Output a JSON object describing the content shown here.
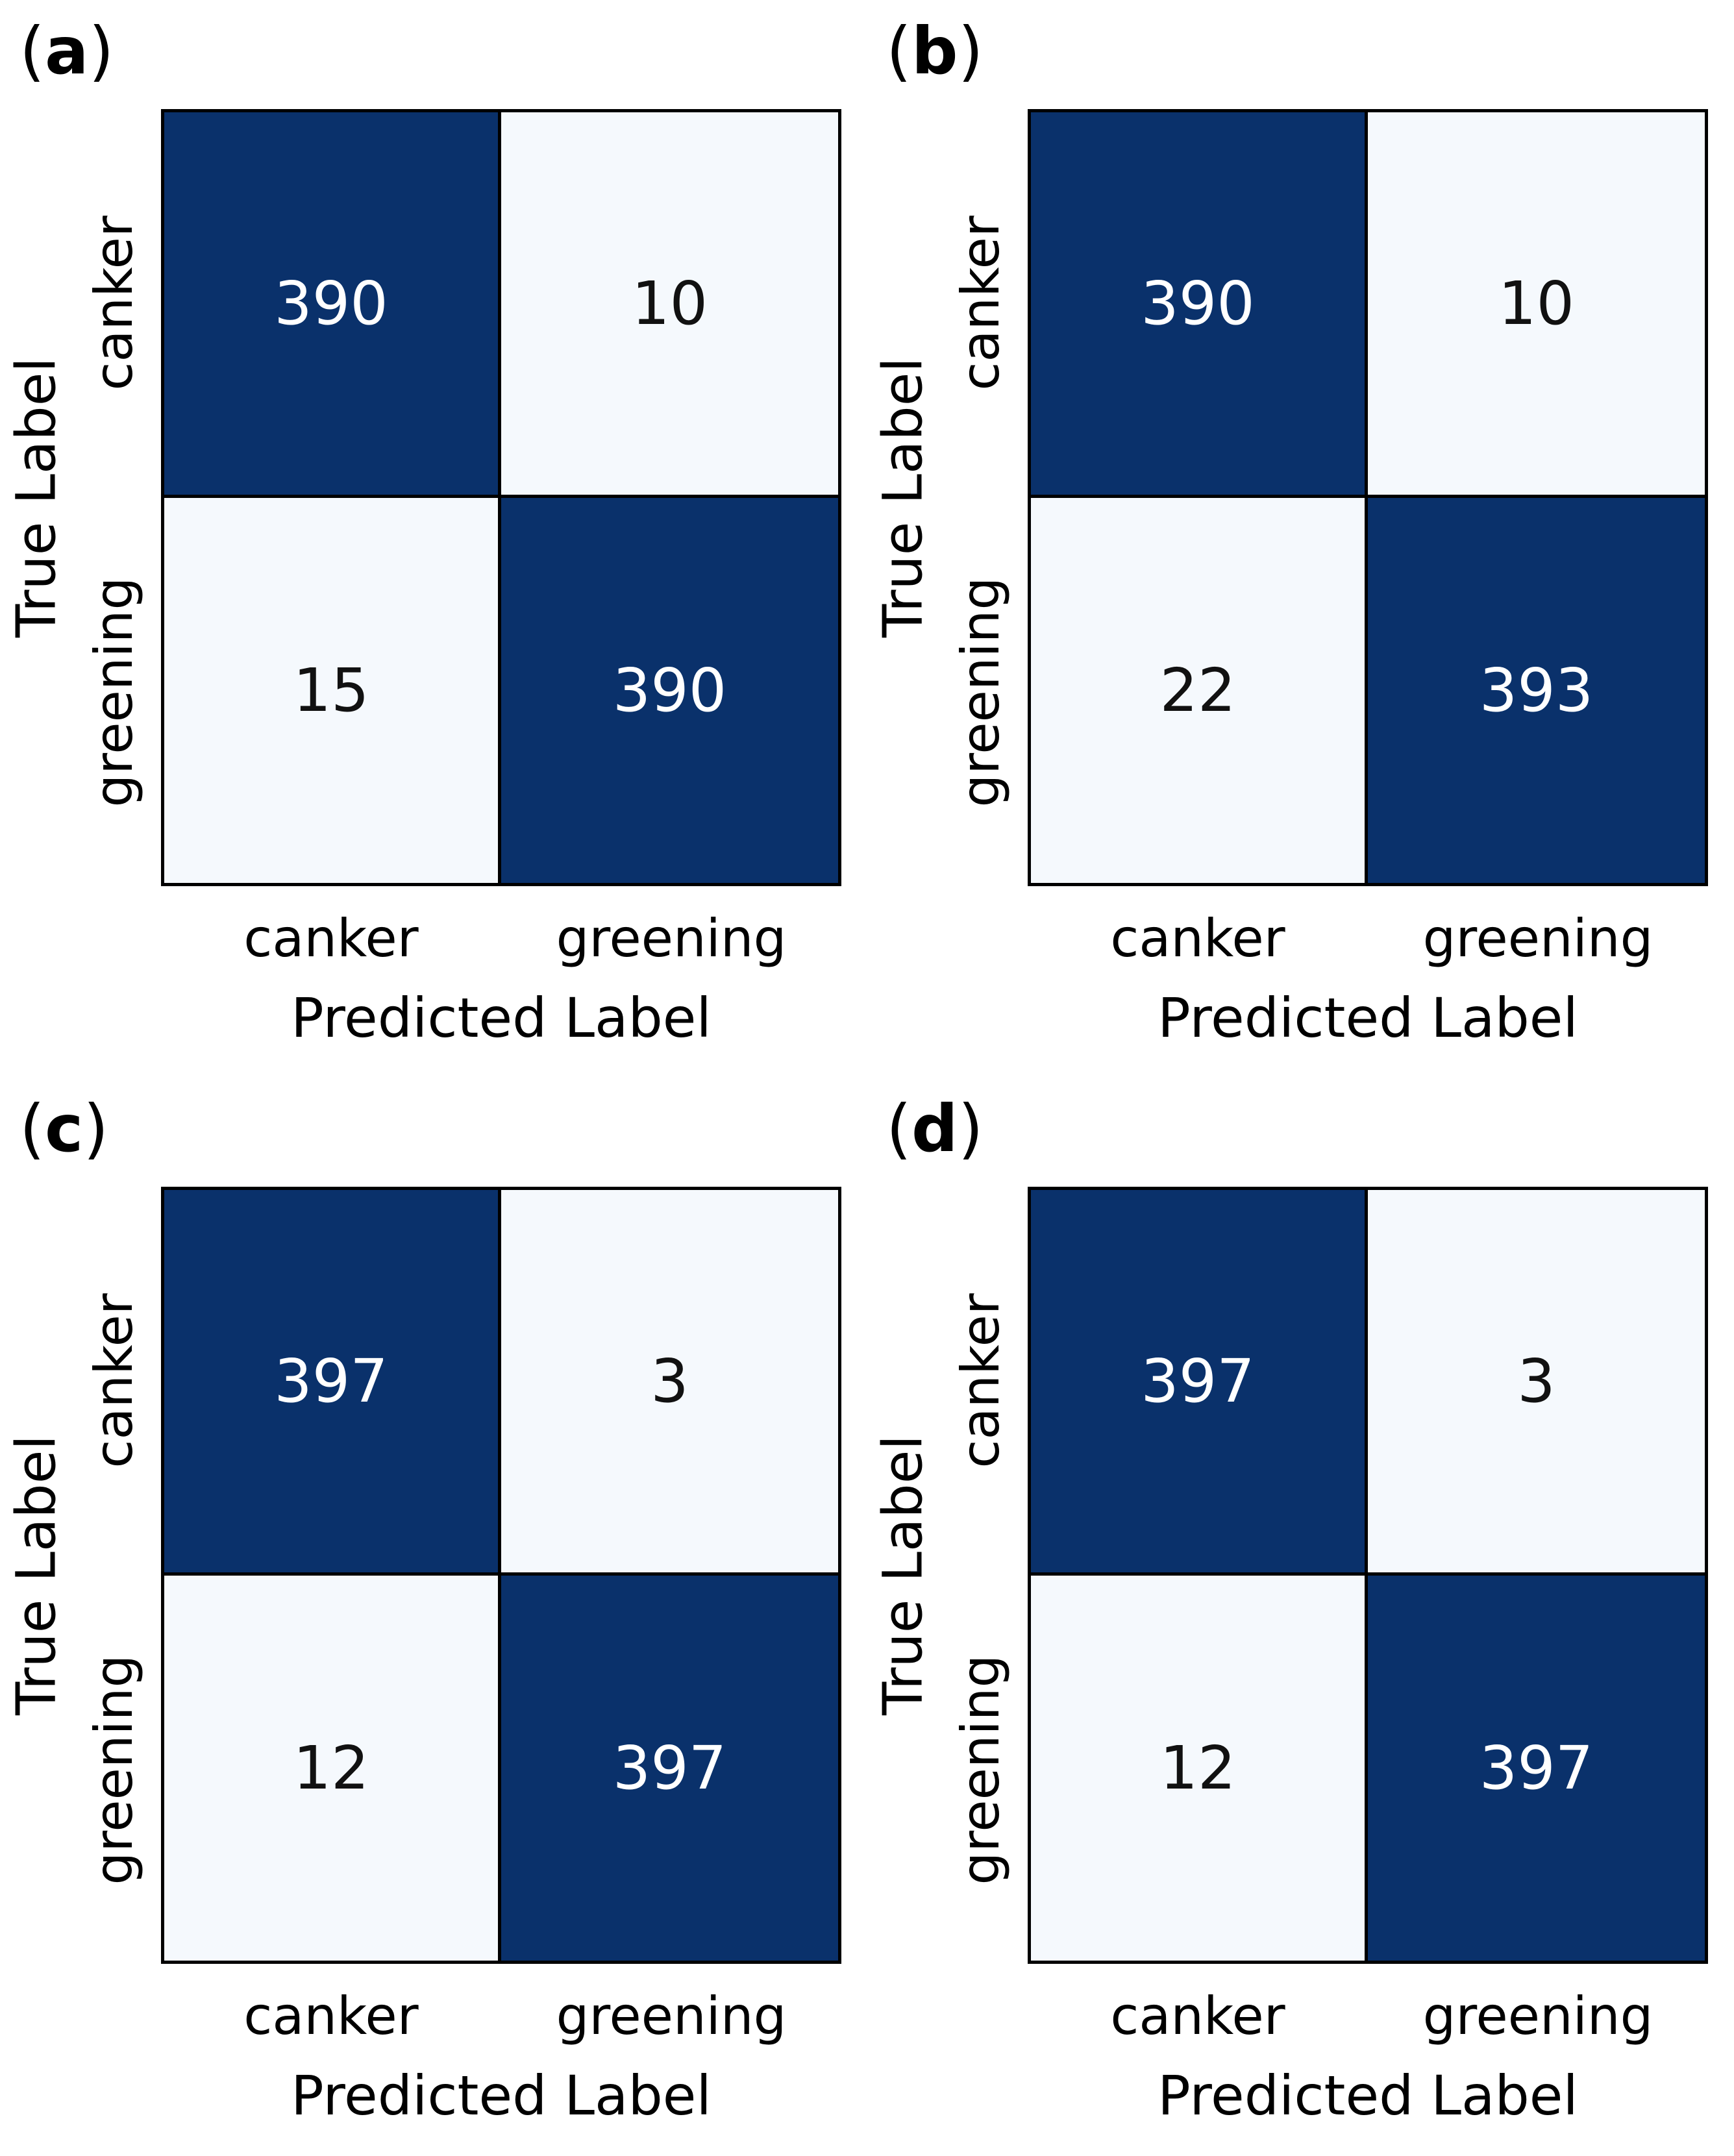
{
  "figure": {
    "panel_paren_open": "(",
    "panel_paren_close": ")",
    "xlabel": "Predicted Label",
    "ylabel": "True Label",
    "xticks": [
      "canker",
      "greening"
    ],
    "yticks": [
      "canker",
      "greening"
    ]
  },
  "colors": {
    "page_bg": "#ffffff",
    "cell_dark": "#0a316b",
    "cell_light": "#f5f9fd",
    "border": "#000000",
    "text_on_dark": "#ffffff",
    "text_on_light": "#111111",
    "label_color": "#000000"
  },
  "chart_data": [
    {
      "type": "heatmap",
      "panel": "a",
      "rows": [
        "canker",
        "greening"
      ],
      "cols": [
        "canker",
        "greening"
      ],
      "values": [
        [
          390,
          10
        ],
        [
          15,
          390
        ]
      ],
      "xlabel": "Predicted Label",
      "ylabel": "True Label"
    },
    {
      "type": "heatmap",
      "panel": "b",
      "rows": [
        "canker",
        "greening"
      ],
      "cols": [
        "canker",
        "greening"
      ],
      "values": [
        [
          390,
          10
        ],
        [
          22,
          393
        ]
      ],
      "xlabel": "Predicted Label",
      "ylabel": "True Label"
    },
    {
      "type": "heatmap",
      "panel": "c",
      "rows": [
        "canker",
        "greening"
      ],
      "cols": [
        "canker",
        "greening"
      ],
      "values": [
        [
          397,
          3
        ],
        [
          12,
          397
        ]
      ],
      "xlabel": "Predicted Label",
      "ylabel": "True Label"
    },
    {
      "type": "heatmap",
      "panel": "d",
      "rows": [
        "canker",
        "greening"
      ],
      "cols": [
        "canker",
        "greening"
      ],
      "values": [
        [
          397,
          3
        ],
        [
          12,
          397
        ]
      ],
      "xlabel": "Predicted Label",
      "ylabel": "True Label"
    }
  ]
}
